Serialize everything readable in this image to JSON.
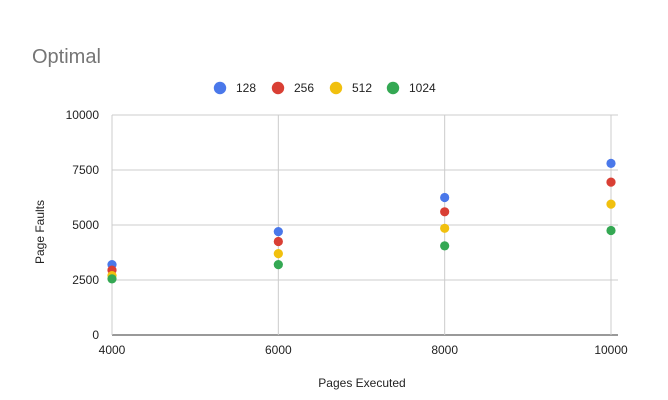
{
  "chart_data": {
    "type": "scatter",
    "title": "Optimal",
    "xlabel": "Pages Executed",
    "ylabel": "Page Faults",
    "x": [
      4000,
      6000,
      8000,
      10000
    ],
    "xlim": [
      4000,
      10000
    ],
    "ylim": [
      0,
      10000
    ],
    "x_ticks": [
      4000,
      6000,
      8000,
      10000
    ],
    "y_ticks": [
      0,
      2500,
      5000,
      7500,
      10000
    ],
    "grid": true,
    "legend_position": "top",
    "series": [
      {
        "name": "128",
        "color": "#4a78ea",
        "values": [
          3200,
          4700,
          6250,
          7800
        ]
      },
      {
        "name": "256",
        "color": "#d93f34",
        "values": [
          2950,
          4250,
          5600,
          6950
        ]
      },
      {
        "name": "512",
        "color": "#f1c00e",
        "values": [
          2700,
          3700,
          4850,
          5950
        ]
      },
      {
        "name": "1024",
        "color": "#34a853",
        "values": [
          2550,
          3200,
          4050,
          4750
        ]
      }
    ]
  }
}
